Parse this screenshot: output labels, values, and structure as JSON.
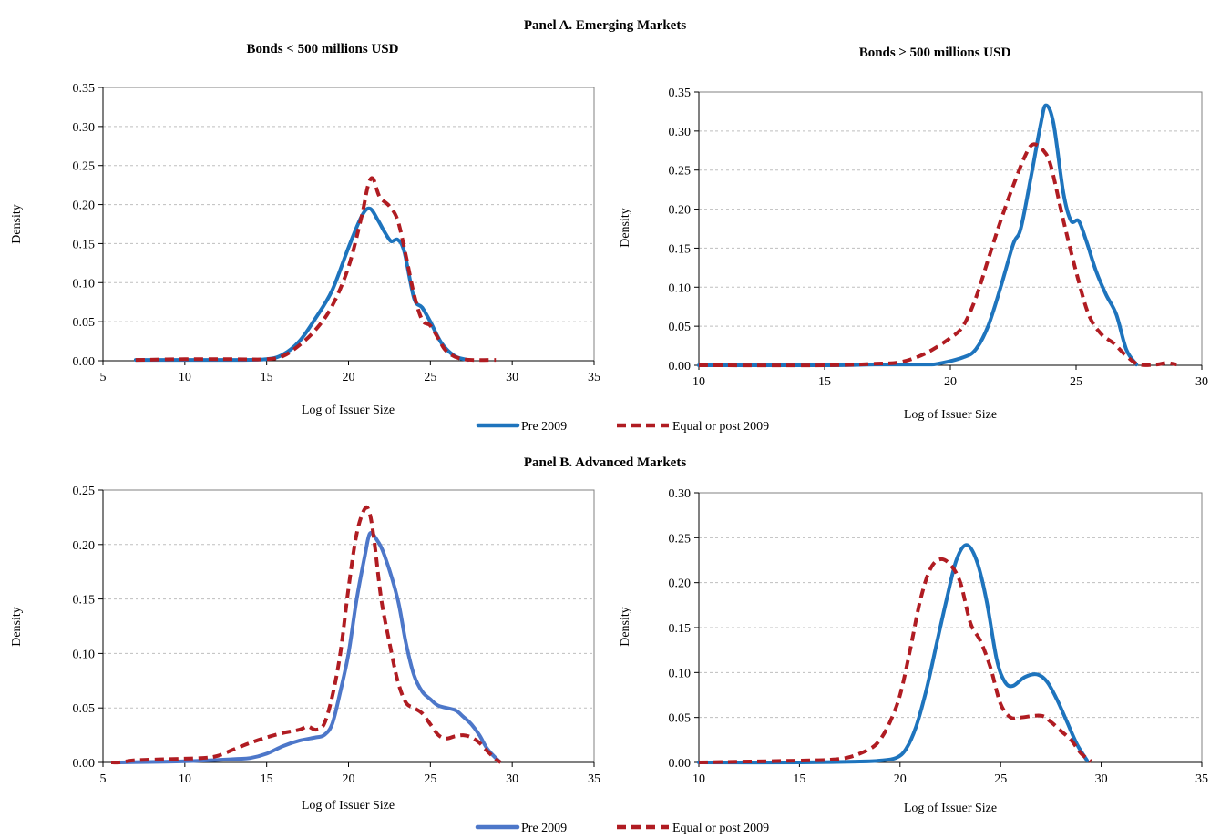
{
  "figure": {
    "panel_a_title": "Panel A. Emerging Markets",
    "panel_b_title": "Panel B. Advanced Markets",
    "legend": [
      {
        "label": "Pre 2009"
      },
      {
        "label": "Equal or post 2009"
      }
    ]
  },
  "colors": {
    "pre2009_a": "#1e74bd",
    "pre2009_b": "#4d77c9",
    "post2009": "#b01c22",
    "grid": "#bfbfbf",
    "frame": "#808080"
  },
  "chart_data": [
    {
      "id": "a-left",
      "type": "line",
      "title": "Bonds < 500 millions USD",
      "xlabel": "Log of Issuer Size",
      "ylabel": "Density",
      "xlim": [
        5,
        35
      ],
      "ylim": [
        0,
        0.35
      ],
      "xticks": [
        5,
        10,
        15,
        20,
        25,
        30,
        35
      ],
      "yticks": [
        0.0,
        0.05,
        0.1,
        0.15,
        0.2,
        0.25,
        0.3,
        0.35
      ],
      "grid": true,
      "series": [
        {
          "name": "Pre 2009",
          "style": "solid",
          "color_key": "pre2009_a",
          "points": [
            [
              7,
              0.001
            ],
            [
              10,
              0.001
            ],
            [
              13,
              0.001
            ],
            [
              15,
              0.002
            ],
            [
              16,
              0.008
            ],
            [
              17,
              0.025
            ],
            [
              18,
              0.055
            ],
            [
              19,
              0.09
            ],
            [
              20,
              0.145
            ],
            [
              20.8,
              0.185
            ],
            [
              21.3,
              0.195
            ],
            [
              21.8,
              0.18
            ],
            [
              22.2,
              0.165
            ],
            [
              22.6,
              0.153
            ],
            [
              23,
              0.155
            ],
            [
              23.4,
              0.14
            ],
            [
              24,
              0.08
            ],
            [
              24.5,
              0.068
            ],
            [
              25,
              0.05
            ],
            [
              25.7,
              0.022
            ],
            [
              26.5,
              0.006
            ],
            [
              27.3,
              0.001
            ]
          ]
        },
        {
          "name": "Equal or post 2009",
          "style": "dashed",
          "color_key": "post2009",
          "points": [
            [
              7,
              0.001
            ],
            [
              10,
              0.002
            ],
            [
              13,
              0.002
            ],
            [
              15,
              0.002
            ],
            [
              16,
              0.006
            ],
            [
              17,
              0.02
            ],
            [
              18,
              0.04
            ],
            [
              19,
              0.07
            ],
            [
              20,
              0.12
            ],
            [
              20.8,
              0.185
            ],
            [
              21.2,
              0.225
            ],
            [
              21.5,
              0.233
            ],
            [
              21.9,
              0.21
            ],
            [
              22.5,
              0.198
            ],
            [
              23,
              0.18
            ],
            [
              23.5,
              0.135
            ],
            [
              24,
              0.085
            ],
            [
              24.5,
              0.052
            ],
            [
              25,
              0.045
            ],
            [
              25.5,
              0.028
            ],
            [
              26,
              0.012
            ],
            [
              27,
              0.002
            ],
            [
              29,
              0.001
            ]
          ]
        }
      ]
    },
    {
      "id": "a-right",
      "type": "line",
      "title": "Bonds ≥ 500 millions USD",
      "xlabel": "Log of Issuer Size",
      "ylabel": "Density",
      "xlim": [
        10,
        30
      ],
      "ylim": [
        0,
        0.35
      ],
      "xticks": [
        10,
        15,
        20,
        25,
        30
      ],
      "yticks": [
        0.0,
        0.05,
        0.1,
        0.15,
        0.2,
        0.25,
        0.3,
        0.35
      ],
      "grid": true,
      "series": [
        {
          "name": "Pre 2009",
          "style": "solid",
          "color_key": "pre2009_a",
          "points": [
            [
              10,
              0.0
            ],
            [
              15,
              0.0
            ],
            [
              17,
              0.001
            ],
            [
              19,
              0.001
            ],
            [
              19.5,
              0.002
            ],
            [
              20.5,
              0.01
            ],
            [
              21,
              0.02
            ],
            [
              21.5,
              0.05
            ],
            [
              22,
              0.1
            ],
            [
              22.5,
              0.155
            ],
            [
              22.8,
              0.175
            ],
            [
              23.2,
              0.24
            ],
            [
              23.6,
              0.31
            ],
            [
              23.8,
              0.333
            ],
            [
              24.1,
              0.31
            ],
            [
              24.5,
              0.22
            ],
            [
              24.8,
              0.185
            ],
            [
              25.1,
              0.185
            ],
            [
              25.4,
              0.16
            ],
            [
              25.8,
              0.12
            ],
            [
              26.2,
              0.09
            ],
            [
              26.6,
              0.065
            ],
            [
              27,
              0.02
            ],
            [
              27.4,
              0.001
            ]
          ]
        },
        {
          "name": "Equal or post 2009",
          "style": "dashed",
          "color_key": "post2009",
          "points": [
            [
              10,
              0.0
            ],
            [
              15,
              0.0
            ],
            [
              17,
              0.002
            ],
            [
              18,
              0.004
            ],
            [
              19,
              0.015
            ],
            [
              20,
              0.035
            ],
            [
              20.5,
              0.05
            ],
            [
              21,
              0.085
            ],
            [
              21.5,
              0.135
            ],
            [
              22,
              0.185
            ],
            [
              22.5,
              0.23
            ],
            [
              23,
              0.27
            ],
            [
              23.3,
              0.283
            ],
            [
              23.7,
              0.275
            ],
            [
              24,
              0.255
            ],
            [
              24.5,
              0.185
            ],
            [
              25,
              0.12
            ],
            [
              25.5,
              0.065
            ],
            [
              26,
              0.04
            ],
            [
              26.5,
              0.028
            ],
            [
              27,
              0.012
            ],
            [
              27.5,
              0.001
            ],
            [
              28.2,
              0.001
            ],
            [
              28.6,
              0.003
            ],
            [
              29,
              0.001
            ]
          ]
        }
      ]
    },
    {
      "id": "b-left",
      "type": "line",
      "title": "",
      "xlabel": "Log of Issuer Size",
      "ylabel": "Density",
      "xlim": [
        5,
        35
      ],
      "ylim": [
        0,
        0.25
      ],
      "xticks": [
        5,
        10,
        15,
        20,
        25,
        30,
        35
      ],
      "yticks": [
        0.0,
        0.05,
        0.1,
        0.15,
        0.2,
        0.25
      ],
      "grid": true,
      "series": [
        {
          "name": "Pre 2009",
          "style": "solid",
          "color_key": "pre2009_b",
          "points": [
            [
              6,
              0.0
            ],
            [
              10,
              0.001
            ],
            [
              13,
              0.003
            ],
            [
              14,
              0.004
            ],
            [
              15,
              0.008
            ],
            [
              16,
              0.015
            ],
            [
              17,
              0.02
            ],
            [
              18,
              0.023
            ],
            [
              18.5,
              0.025
            ],
            [
              19,
              0.035
            ],
            [
              19.5,
              0.065
            ],
            [
              20,
              0.1
            ],
            [
              20.5,
              0.15
            ],
            [
              21,
              0.19
            ],
            [
              21.3,
              0.21
            ],
            [
              21.7,
              0.205
            ],
            [
              22.2,
              0.19
            ],
            [
              23,
              0.15
            ],
            [
              23.5,
              0.11
            ],
            [
              24,
              0.08
            ],
            [
              24.5,
              0.065
            ],
            [
              25,
              0.058
            ],
            [
              25.5,
              0.052
            ],
            [
              26.5,
              0.048
            ],
            [
              27,
              0.042
            ],
            [
              27.5,
              0.035
            ],
            [
              28,
              0.025
            ],
            [
              28.5,
              0.012
            ],
            [
              29.2,
              0.001
            ]
          ]
        },
        {
          "name": "Equal or post 2009",
          "style": "dashed",
          "color_key": "post2009",
          "points": [
            [
              5.5,
              0.0
            ],
            [
              6,
              0.0
            ],
            [
              7,
              0.002
            ],
            [
              9,
              0.003
            ],
            [
              11,
              0.004
            ],
            [
              12,
              0.006
            ],
            [
              13,
              0.012
            ],
            [
              14,
              0.018
            ],
            [
              15,
              0.023
            ],
            [
              16,
              0.027
            ],
            [
              17,
              0.03
            ],
            [
              17.5,
              0.033
            ],
            [
              18,
              0.03
            ],
            [
              18.5,
              0.035
            ],
            [
              19,
              0.06
            ],
            [
              19.5,
              0.1
            ],
            [
              20,
              0.16
            ],
            [
              20.5,
              0.21
            ],
            [
              21,
              0.233
            ],
            [
              21.3,
              0.228
            ],
            [
              21.6,
              0.2
            ],
            [
              22,
              0.15
            ],
            [
              22.5,
              0.11
            ],
            [
              23,
              0.075
            ],
            [
              23.5,
              0.055
            ],
            [
              24,
              0.05
            ],
            [
              24.5,
              0.045
            ],
            [
              25,
              0.035
            ],
            [
              25.5,
              0.025
            ],
            [
              26,
              0.022
            ],
            [
              26.5,
              0.024
            ],
            [
              27,
              0.025
            ],
            [
              27.5,
              0.023
            ],
            [
              28,
              0.018
            ],
            [
              28.5,
              0.01
            ],
            [
              29,
              0.003
            ],
            [
              29.3,
              0.0
            ]
          ]
        }
      ]
    },
    {
      "id": "b-right",
      "type": "line",
      "title": "",
      "xlabel": "Log of Issuer Size",
      "ylabel": "Density",
      "xlim": [
        10,
        35
      ],
      "ylim": [
        0,
        0.3
      ],
      "xticks": [
        10,
        15,
        20,
        25,
        30,
        35
      ],
      "yticks": [
        0.0,
        0.05,
        0.1,
        0.15,
        0.2,
        0.25,
        0.3
      ],
      "grid": true,
      "series": [
        {
          "name": "Pre 2009",
          "style": "solid",
          "color_key": "pre2009_a",
          "points": [
            [
              10,
              0.0
            ],
            [
              15,
              0.0
            ],
            [
              18,
              0.001
            ],
            [
              19,
              0.002
            ],
            [
              19.8,
              0.005
            ],
            [
              20.3,
              0.015
            ],
            [
              20.8,
              0.04
            ],
            [
              21.3,
              0.08
            ],
            [
              21.8,
              0.13
            ],
            [
              22.3,
              0.18
            ],
            [
              22.8,
              0.225
            ],
            [
              23.3,
              0.242
            ],
            [
              23.8,
              0.225
            ],
            [
              24.3,
              0.18
            ],
            [
              24.8,
              0.115
            ],
            [
              25.2,
              0.09
            ],
            [
              25.6,
              0.085
            ],
            [
              26.2,
              0.095
            ],
            [
              26.8,
              0.098
            ],
            [
              27.3,
              0.09
            ],
            [
              27.8,
              0.07
            ],
            [
              28.3,
              0.045
            ],
            [
              28.8,
              0.02
            ],
            [
              29.3,
              0.002
            ]
          ]
        },
        {
          "name": "Equal or post 2009",
          "style": "dashed",
          "color_key": "post2009",
          "points": [
            [
              10,
              0.0
            ],
            [
              15,
              0.002
            ],
            [
              16.5,
              0.003
            ],
            [
              17.5,
              0.006
            ],
            [
              18.5,
              0.015
            ],
            [
              19,
              0.025
            ],
            [
              19.5,
              0.045
            ],
            [
              20,
              0.075
            ],
            [
              20.5,
              0.125
            ],
            [
              21,
              0.18
            ],
            [
              21.5,
              0.215
            ],
            [
              22,
              0.226
            ],
            [
              22.5,
              0.22
            ],
            [
              23,
              0.2
            ],
            [
              23.5,
              0.155
            ],
            [
              24,
              0.135
            ],
            [
              24.5,
              0.105
            ],
            [
              25,
              0.065
            ],
            [
              25.5,
              0.05
            ],
            [
              26,
              0.05
            ],
            [
              27,
              0.052
            ],
            [
              27.5,
              0.045
            ],
            [
              28,
              0.035
            ],
            [
              28.5,
              0.025
            ],
            [
              29,
              0.01
            ],
            [
              29.5,
              0.001
            ]
          ]
        }
      ]
    }
  ]
}
